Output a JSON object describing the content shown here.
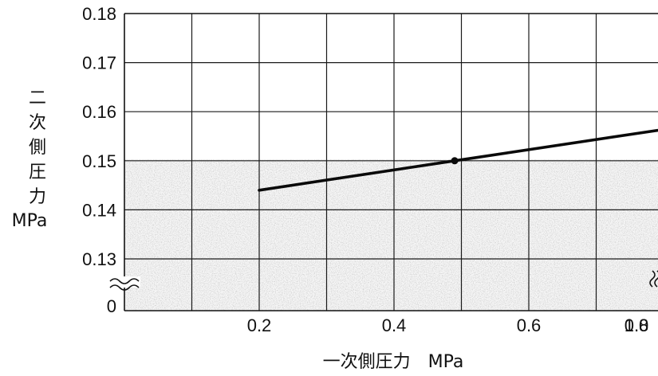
{
  "chart_data": {
    "type": "line",
    "xlabel": "一次側圧力　MPa",
    "ylabel_chars": [
      "二",
      "次",
      "側",
      "圧",
      "力"
    ],
    "ylabel_unit": "MPa",
    "x_ticks": [
      "0.2",
      "0.4",
      "0.6",
      "0.8",
      "1.0"
    ],
    "y_ticks": [
      "0.18",
      "0.17",
      "0.16",
      "0.15",
      "0.14",
      "0.13"
    ],
    "y_zero_label": "0",
    "xlim": [
      0,
      1.0
    ],
    "ylim": [
      0.125,
      0.18
    ],
    "y_axis_break": true,
    "grid": true,
    "series": [
      {
        "x": [
          0.2,
          0.49,
          1.0
        ],
        "y": [
          0.144,
          0.15,
          0.1605
        ],
        "marker_x": 0.49,
        "marker_y": 0.15,
        "color": "#0a0a0a"
      }
    ]
  }
}
